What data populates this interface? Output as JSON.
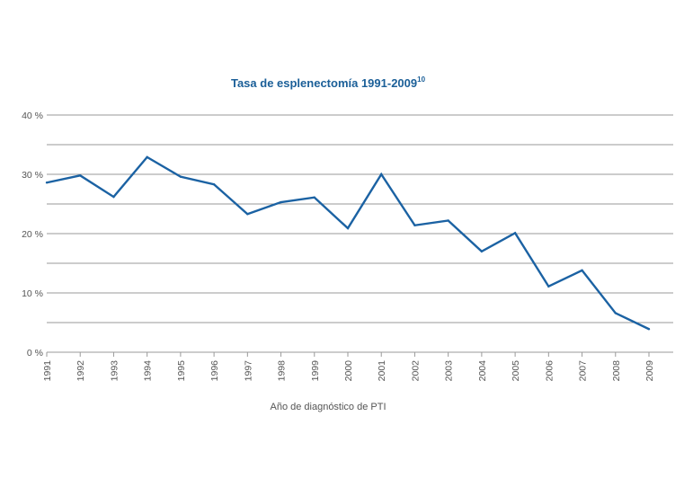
{
  "chart_data": {
    "type": "line",
    "title": "Tasa de esplenectomía 1991-2009",
    "title_superscript": "10",
    "xlabel": "Año de diagnóstico de PTI",
    "ylabel": "",
    "categories": [
      "1991",
      "1992",
      "1993",
      "1994",
      "1995",
      "1996",
      "1997",
      "1998",
      "1999",
      "2000",
      "2001",
      "2002",
      "2003",
      "2004",
      "2005",
      "2006",
      "2007",
      "2008",
      "2009"
    ],
    "series": [
      {
        "name": "Tasa de esplenectomía",
        "values": [
          28.6,
          29.8,
          26.2,
          32.9,
          29.6,
          28.3,
          23.3,
          25.3,
          26.1,
          20.9,
          30.0,
          21.4,
          22.2,
          17.0,
          20.1,
          11.1,
          13.8,
          6.6,
          3.9
        ]
      }
    ],
    "ylim": [
      0,
      40
    ],
    "y_ticks": [
      {
        "value": 0,
        "label": "0 %"
      },
      {
        "value": 10,
        "label": "10 %"
      },
      {
        "value": 20,
        "label": "20 %"
      },
      {
        "value": 30,
        "label": "30 %"
      },
      {
        "value": 40,
        "label": "40 %"
      }
    ],
    "y_minor_gridlines": [
      5,
      15,
      25,
      35
    ],
    "grid": true,
    "line_color": "#1b62a3"
  }
}
